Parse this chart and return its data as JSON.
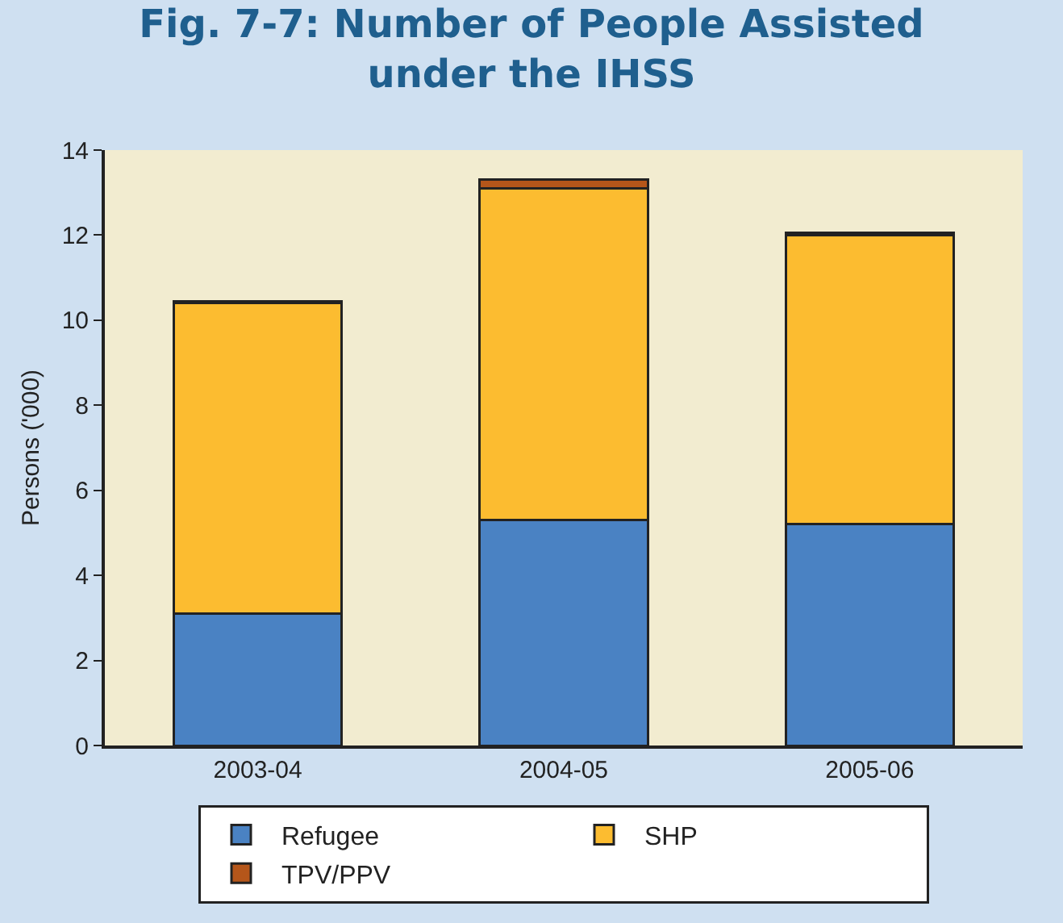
{
  "chart_data": {
    "type": "bar",
    "title": "Fig. 7-7: Number of People Assisted under the IHSS",
    "ylabel": "Persons ('000)",
    "categories": [
      "2003-04",
      "2004-05",
      "2005-06"
    ],
    "stacked": true,
    "series": [
      {
        "name": "Refugee",
        "color": "#4a82c3",
        "values": [
          3.1,
          5.3,
          5.2
        ]
      },
      {
        "name": "SHP",
        "color": "#fcbc30",
        "values": [
          7.3,
          7.8,
          6.8
        ]
      },
      {
        "name": "TPV/PPV",
        "color": "#b5561a",
        "values": [
          0.05,
          0.2,
          0.05
        ]
      }
    ],
    "ylim": [
      0,
      14
    ],
    "yticks": [
      0,
      2,
      4,
      6,
      8,
      10,
      12,
      14
    ],
    "grid": false,
    "legend": "bottom"
  }
}
